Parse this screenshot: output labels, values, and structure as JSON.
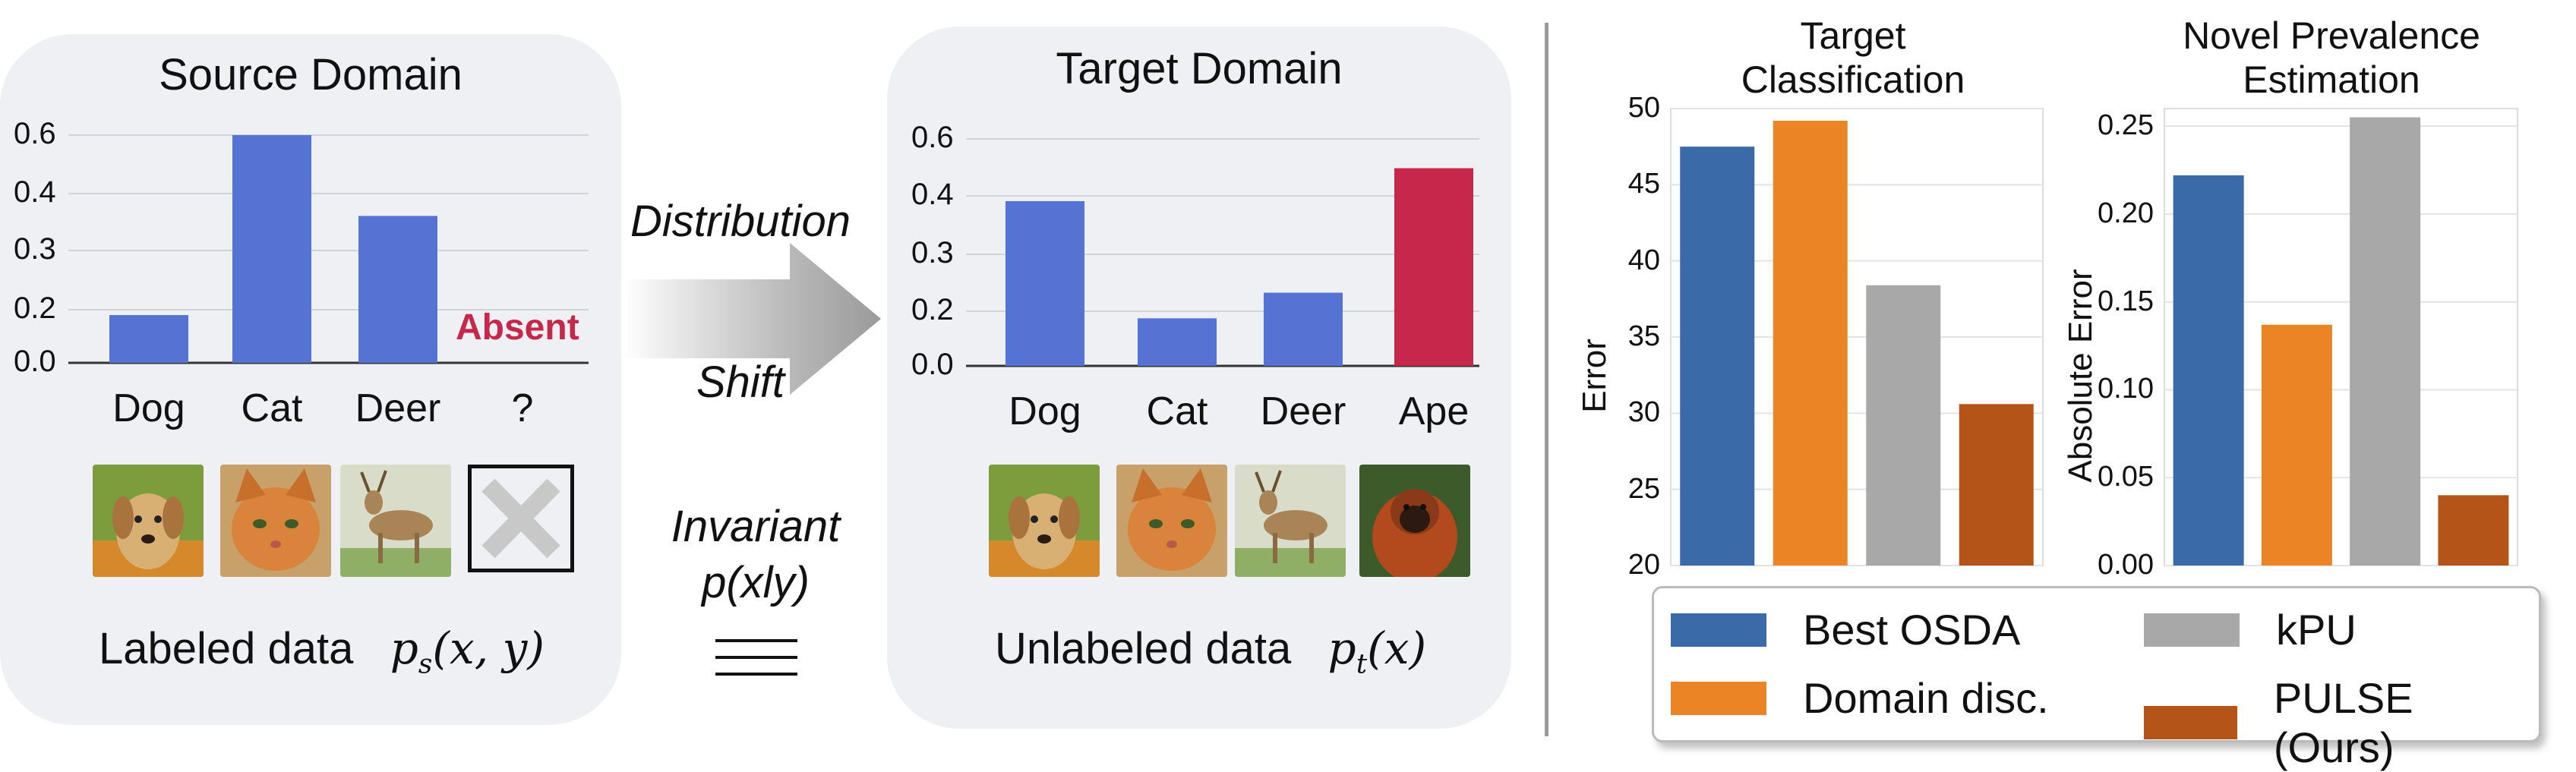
{
  "left_diagram": {
    "source": {
      "title": "Source Domain",
      "yticks": [
        "0.0",
        "0.2",
        "0.3",
        "0.4",
        "0.6"
      ],
      "categories": [
        "Dog",
        "Cat",
        "Deer",
        "?"
      ],
      "values": [
        0.13,
        0.62,
        0.4,
        0
      ],
      "absent_label": "Absent",
      "caption_text": "Labeled data",
      "caption_math": "p",
      "caption_sub": "s",
      "caption_args": "(x, y)"
    },
    "target": {
      "title": "Target Domain",
      "yticks": [
        "0.0",
        "0.2",
        "0.3",
        "0.4",
        "0.6"
      ],
      "categories": [
        "Dog",
        "Cat",
        "Deer",
        "Ape"
      ],
      "values": [
        0.45,
        0.13,
        0.2,
        0.54
      ],
      "caption_text": "Unlabeled data",
      "caption_math": "p",
      "caption_sub": "t",
      "caption_args": "(x)"
    },
    "middle": {
      "shift_line1": "Distribution",
      "shift_line2": "Shift",
      "invariant_line1": "Invariant",
      "invariant_line2": "p(xly)"
    },
    "colors": {
      "bar": "#5573d3",
      "absent": "#c5284a",
      "panel": "#eef0f4"
    },
    "icons": [
      "dog-photo",
      "cat-photo",
      "deer-photo",
      "absent-cross",
      "ape-photo"
    ]
  },
  "chart_data": [
    {
      "type": "bar",
      "title": "Target Classification",
      "title_lines": [
        "Target",
        "Classification"
      ],
      "ylabel": "Error",
      "xlabel": "",
      "ylim": [
        20,
        50
      ],
      "yticks": [
        20,
        25,
        30,
        35,
        40,
        45,
        50
      ],
      "grid": true,
      "categories": [
        "Best OSDA",
        "Domain disc.",
        "kPU",
        "PULSE (Ours)"
      ],
      "values": [
        47.5,
        49.2,
        38.4,
        30.6
      ],
      "colors": [
        "#3a6aa8",
        "#ea8425",
        "#a8a8a8",
        "#b45418"
      ]
    },
    {
      "type": "bar",
      "title": "Novel Prevalence Estimation",
      "title_lines": [
        "Novel Prevalence",
        "Estimation"
      ],
      "ylabel": "Absolute Error",
      "xlabel": "",
      "ylim": [
        0,
        0.26
      ],
      "yticks": [
        0.0,
        0.05,
        0.1,
        0.15,
        0.2,
        0.25
      ],
      "tick_labels": [
        "0.00",
        "0.05",
        "0.10",
        "0.15",
        "0.20",
        "0.25"
      ],
      "grid": true,
      "categories": [
        "Best OSDA",
        "Domain disc.",
        "kPU",
        "PULSE (Ours)"
      ],
      "values": [
        0.222,
        0.137,
        0.255,
        0.04
      ],
      "colors": [
        "#3a6aa8",
        "#ea8425",
        "#a8a8a8",
        "#b45418"
      ]
    }
  ],
  "legend": {
    "placement": "bottom",
    "items": [
      {
        "label": "Best OSDA",
        "color": "#3a6aa8"
      },
      {
        "label": "kPU",
        "color": "#a8a8a8"
      },
      {
        "label": "Domain disc.",
        "color": "#ea8425"
      },
      {
        "label": "PULSE (Ours)",
        "color": "#b45418"
      }
    ]
  }
}
